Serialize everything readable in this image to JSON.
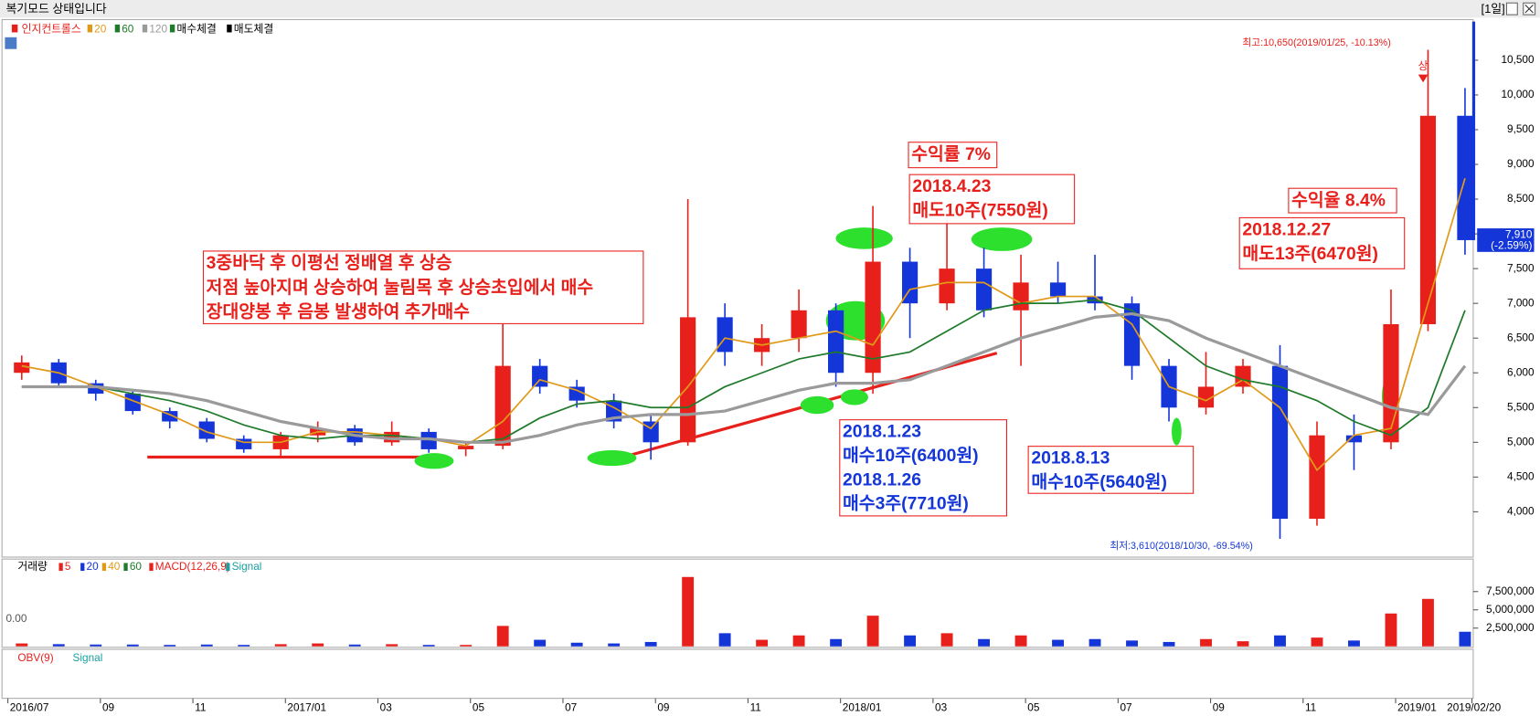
{
  "window": {
    "title": "복기모드 상태입니다",
    "period": "[1일]"
  },
  "chart_data": [
    {
      "type": "candlestick",
      "name": "인지컨트롤스",
      "legend_extra": [
        "매수체결",
        "매도체결"
      ],
      "up_color": "#e8201c",
      "down_color": "#1436d8",
      "x": [
        0.3,
        1.1,
        1.9,
        2.7,
        3.5,
        4.3,
        5.1,
        5.9,
        6.7,
        7.5,
        8.3,
        9.1,
        9.9,
        10.7,
        11.5,
        12.3,
        13.1,
        13.9,
        14.7,
        15.5,
        16.3,
        17.1,
        17.9,
        18.7,
        19.5,
        20.3,
        21.1,
        21.9,
        22.7,
        23.5,
        24.3,
        25.1,
        25.9,
        26.7,
        27.5,
        28.3,
        29.1,
        29.9,
        30.7,
        31.5
      ],
      "open": [
        6000,
        6150,
        5850,
        5700,
        5450,
        5300,
        5050,
        4900,
        5100,
        5200,
        5000,
        5150,
        4900,
        4950,
        6100,
        5800,
        5600,
        5300,
        5000,
        6800,
        6300,
        6500,
        6900,
        6000,
        7600,
        7000,
        7500,
        6900,
        7300,
        7100,
        7000,
        6100,
        5500,
        5800,
        6100,
        3900,
        5100,
        5000,
        6700,
        9700
      ],
      "high": [
        6250,
        6200,
        5900,
        5750,
        5500,
        5350,
        5100,
        5150,
        5300,
        5250,
        5300,
        5200,
        5000,
        6700,
        6200,
        5900,
        5700,
        5400,
        8500,
        7000,
        6700,
        7200,
        7000,
        8400,
        7800,
        8200,
        7800,
        7700,
        7600,
        7700,
        7100,
        6200,
        6300,
        6200,
        6400,
        5300,
        5400,
        7200,
        10650,
        10100
      ],
      "low": [
        5900,
        5800,
        5600,
        5400,
        5200,
        5000,
        4850,
        4800,
        5000,
        4950,
        4950,
        4850,
        4800,
        4900,
        5700,
        5500,
        5200,
        4750,
        4950,
        6100,
        6100,
        6300,
        5800,
        5700,
        6500,
        6900,
        6800,
        6100,
        7000,
        6900,
        5900,
        5300,
        5400,
        5700,
        3610,
        3800,
        4600,
        4900,
        6600,
        7700
      ],
      "close": [
        6150,
        5850,
        5700,
        5450,
        5300,
        5050,
        4900,
        5100,
        5200,
        5000,
        5150,
        4900,
        4950,
        6100,
        5800,
        5600,
        5300,
        5000,
        6800,
        6300,
        6500,
        6900,
        6000,
        7600,
        7000,
        7500,
        6900,
        7300,
        7100,
        7000,
        6100,
        5500,
        5800,
        6100,
        3900,
        5100,
        5000,
        6700,
        9700,
        7910
      ],
      "series": [
        {
          "name": "20",
          "color": "#e09a1a",
          "values": [
            6100,
            6000,
            5800,
            5600,
            5400,
            5150,
            5000,
            5000,
            5150,
            5150,
            5100,
            5050,
            4950,
            5300,
            5900,
            5750,
            5500,
            5200,
            5800,
            6500,
            6400,
            6500,
            6600,
            6400,
            7200,
            7300,
            7300,
            7000,
            7100,
            7100,
            6700,
            5800,
            5600,
            5900,
            5500,
            4600,
            5100,
            5200,
            7000,
            8800
          ]
        },
        {
          "name": "60",
          "color": "#1f7a2a",
          "values": [
            5800,
            5800,
            5800,
            5700,
            5600,
            5450,
            5250,
            5100,
            5050,
            5100,
            5100,
            5050,
            5000,
            5050,
            5350,
            5550,
            5600,
            5500,
            5500,
            5800,
            6000,
            6200,
            6300,
            6200,
            6300,
            6600,
            6900,
            7000,
            7000,
            7050,
            6900,
            6500,
            6100,
            5900,
            5800,
            5600,
            5300,
            5100,
            5500,
            6900
          ]
        },
        {
          "name": "120",
          "color": "#9a9a9a",
          "values": [
            5800,
            5800,
            5800,
            5750,
            5700,
            5600,
            5450,
            5300,
            5200,
            5100,
            5050,
            5050,
            5000,
            5000,
            5100,
            5250,
            5350,
            5400,
            5400,
            5450,
            5600,
            5750,
            5850,
            5850,
            5900,
            6100,
            6300,
            6500,
            6650,
            6800,
            6850,
            6750,
            6500,
            6300,
            6100,
            5900,
            5700,
            5500,
            5400,
            6100
          ]
        }
      ],
      "xlim": [
        0,
        31.7
      ],
      "xticks": [
        {
          "value": 0,
          "label": "2016/07"
        },
        {
          "value": 2,
          "label": "09"
        },
        {
          "value": 4,
          "label": "11"
        },
        {
          "value": 6,
          "label": "2017/01"
        },
        {
          "value": 8,
          "label": "03"
        },
        {
          "value": 10,
          "label": "05"
        },
        {
          "value": 12,
          "label": "07"
        },
        {
          "value": 14,
          "label": "09"
        },
        {
          "value": 16,
          "label": "11"
        },
        {
          "value": 18,
          "label": "2018/01"
        },
        {
          "value": 20,
          "label": "03"
        },
        {
          "value": 22,
          "label": "05"
        },
        {
          "value": 24,
          "label": "07"
        },
        {
          "value": 26,
          "label": "09"
        },
        {
          "value": 28,
          "label": "11"
        },
        {
          "value": 30,
          "label": "2019/01"
        },
        {
          "value": 31.65,
          "label": "2019/02/20"
        }
      ],
      "ylim": [
        3390,
        10830
      ],
      "yticks": [
        {
          "value": 4000,
          "label": "4,000"
        },
        {
          "value": 4500,
          "label": "4,500"
        },
        {
          "value": 5000,
          "label": "5,000"
        },
        {
          "value": 5500,
          "label": "5,500"
        },
        {
          "value": 6000,
          "label": "6,000"
        },
        {
          "value": 6500,
          "label": "6,500"
        },
        {
          "value": 7000,
          "label": "7,000"
        },
        {
          "value": 7500,
          "label": "7,500"
        },
        {
          "value": 8000,
          "label": "8,000"
        },
        {
          "value": 8500,
          "label": "8,500"
        },
        {
          "value": 9000,
          "label": "9,000"
        },
        {
          "value": 9500,
          "label": "9,500"
        },
        {
          "value": 10000,
          "label": "10,000"
        },
        {
          "value": 10500,
          "label": "10,500"
        }
      ],
      "current": {
        "value": 7910,
        "label": "7,910",
        "change": "(-2.59%)"
      },
      "high_note": "최고:10,650(2019/01/25, -10.13%)",
      "low_note": "최저:3,610(2018/10/30, -69.54%)",
      "sell_marker": "상",
      "annotations": [
        {
          "lines": [
            "3중바닥 후 이평선 정배열 후 상승",
            "저점 높아지며 상승하여 눌림목 후 상승초입에서 매수",
            "장대양봉 후 음봉 발생하여 추가매수"
          ],
          "color": "#e8201c"
        },
        {
          "lines": [
            "수익률 7%"
          ],
          "color": "#e8201c"
        },
        {
          "lines": [
            "2018.4.23",
            "매도10주(7550원)"
          ],
          "color": "#e8201c"
        },
        {
          "lines": [
            "2018.1.23",
            "매수10주(6400원)",
            "2018.1.26",
            "매수3주(7710원)"
          ],
          "color": "#1436d8"
        },
        {
          "lines": [
            "2018.8.13",
            "매수10주(5640원)"
          ],
          "color": "#1436d8"
        },
        {
          "lines": [
            "수익율 8.4%"
          ],
          "color": "#e8201c"
        },
        {
          "lines": [
            "2018.12.27",
            "매도13주(6470원)"
          ],
          "color": "#e8201c"
        }
      ]
    },
    {
      "type": "bar",
      "name": "거래량",
      "color": "#1436d8",
      "legend": [
        "5",
        "20",
        "40",
        "60",
        "MACD(12,26,9)",
        "Signal"
      ],
      "zero_label": "0.00",
      "values": [
        400000,
        300000,
        250000,
        250000,
        200000,
        250000,
        200000,
        300000,
        400000,
        250000,
        300000,
        200000,
        200000,
        2800000,
        900000,
        500000,
        400000,
        600000,
        9500000,
        1800000,
        900000,
        1500000,
        1000000,
        4200000,
        1500000,
        1800000,
        1000000,
        1500000,
        900000,
        1000000,
        800000,
        600000,
        1000000,
        700000,
        1500000,
        1200000,
        800000,
        4500000,
        6500000,
        2000000
      ],
      "ylim": [
        0,
        9400000
      ],
      "yticks": [
        {
          "value": 2500000,
          "label": "2,500,000"
        },
        {
          "value": 5000000,
          "label": "5,000,000"
        },
        {
          "value": 7500000,
          "label": "7,500,000"
        }
      ]
    }
  ],
  "obv_panel": {
    "legend": [
      "OBV(9)",
      "Signal"
    ]
  }
}
